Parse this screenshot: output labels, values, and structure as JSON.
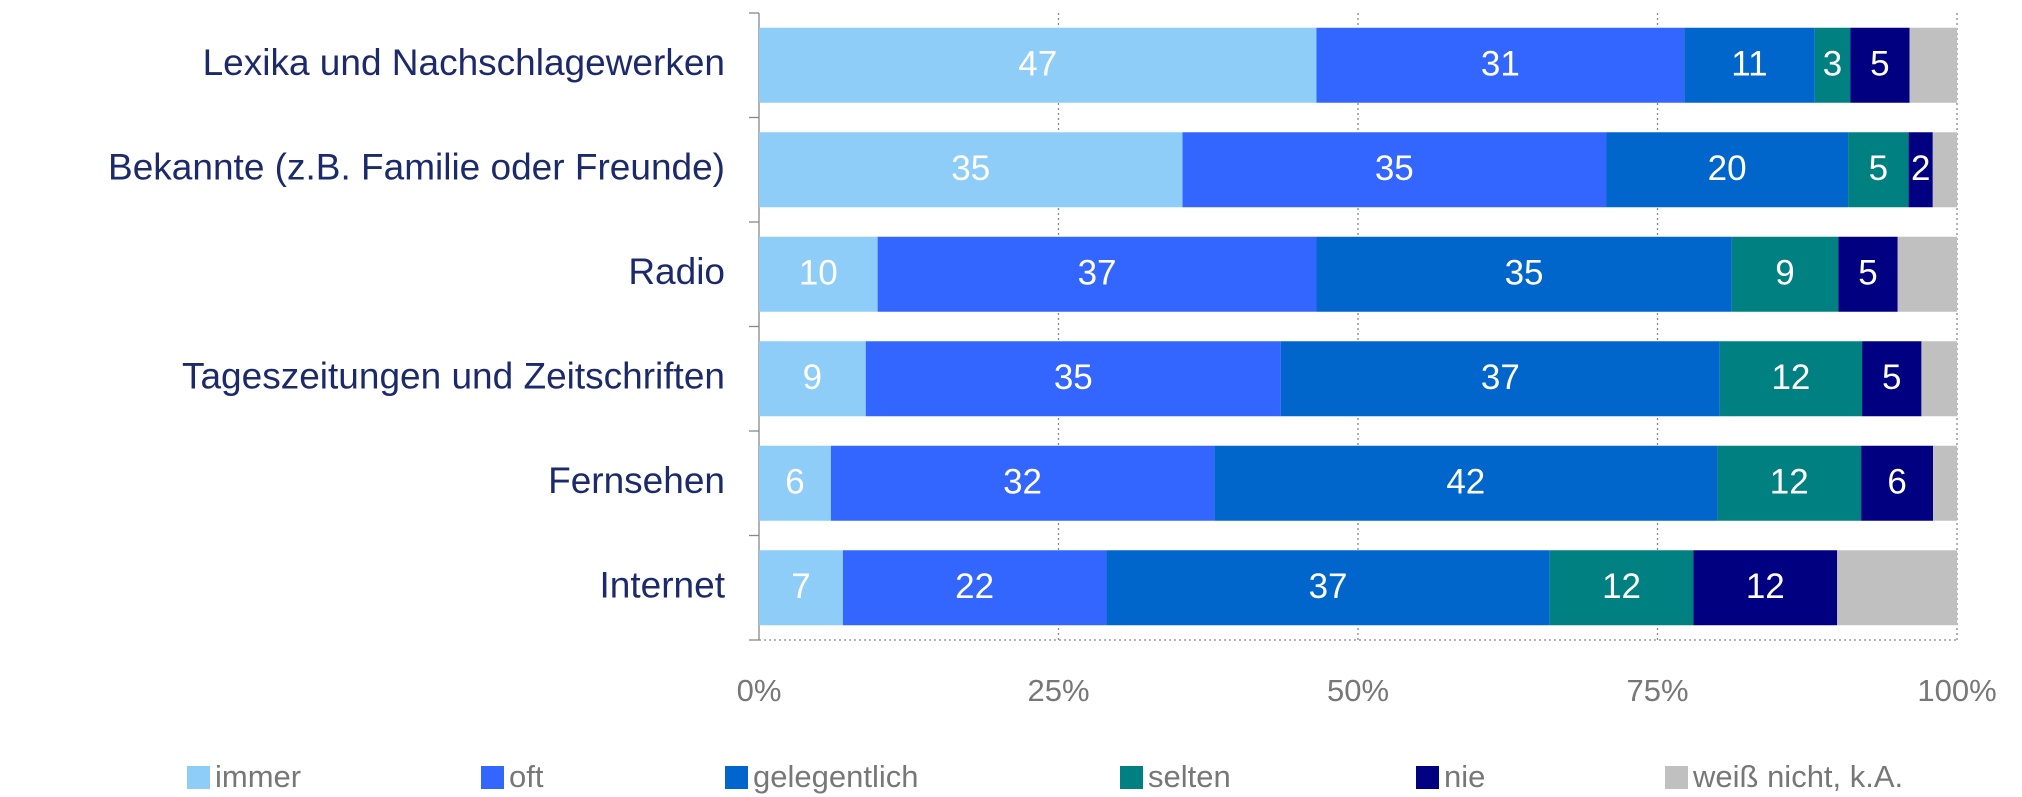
{
  "chart_data": {
    "type": "stacked_bar_horizontal",
    "categories": [
      "Lexika und Nachschlagewerken",
      "Bekannte (z.B. Familie oder Freunde)",
      "Radio",
      "Tageszeitungen und Zeitschriften",
      "Fernsehen",
      "Internet"
    ],
    "series": [
      {
        "name": "immer",
        "color": "#8ecdf7",
        "values": [
          47,
          35,
          10,
          9,
          6,
          7
        ]
      },
      {
        "name": "oft",
        "color": "#3366ff",
        "values": [
          31,
          35,
          37,
          35,
          32,
          22
        ]
      },
      {
        "name": "gelegentlich",
        "color": "#0066cc",
        "values": [
          11,
          20,
          35,
          37,
          42,
          37
        ]
      },
      {
        "name": "selten",
        "color": "#008080",
        "values": [
          3,
          5,
          9,
          12,
          12,
          12
        ]
      },
      {
        "name": "nie",
        "color": "#000080",
        "values": [
          5,
          2,
          5,
          5,
          6,
          12
        ]
      },
      {
        "name": "weiß nicht, k.A.",
        "color": "#c0c0c0",
        "values": [
          4,
          2,
          5,
          3,
          2,
          10
        ],
        "value_labels": [
          null,
          null,
          null,
          null,
          null,
          null
        ]
      }
    ],
    "xlim": [
      0,
      100
    ],
    "xticks": [
      {
        "value": 0,
        "label": "0%"
      },
      {
        "value": 25,
        "label": "25%"
      },
      {
        "value": 50,
        "label": "50%"
      },
      {
        "value": 75,
        "label": "75%"
      },
      {
        "value": 100,
        "label": "100%"
      }
    ],
    "grid": true,
    "legend": "bottom"
  }
}
